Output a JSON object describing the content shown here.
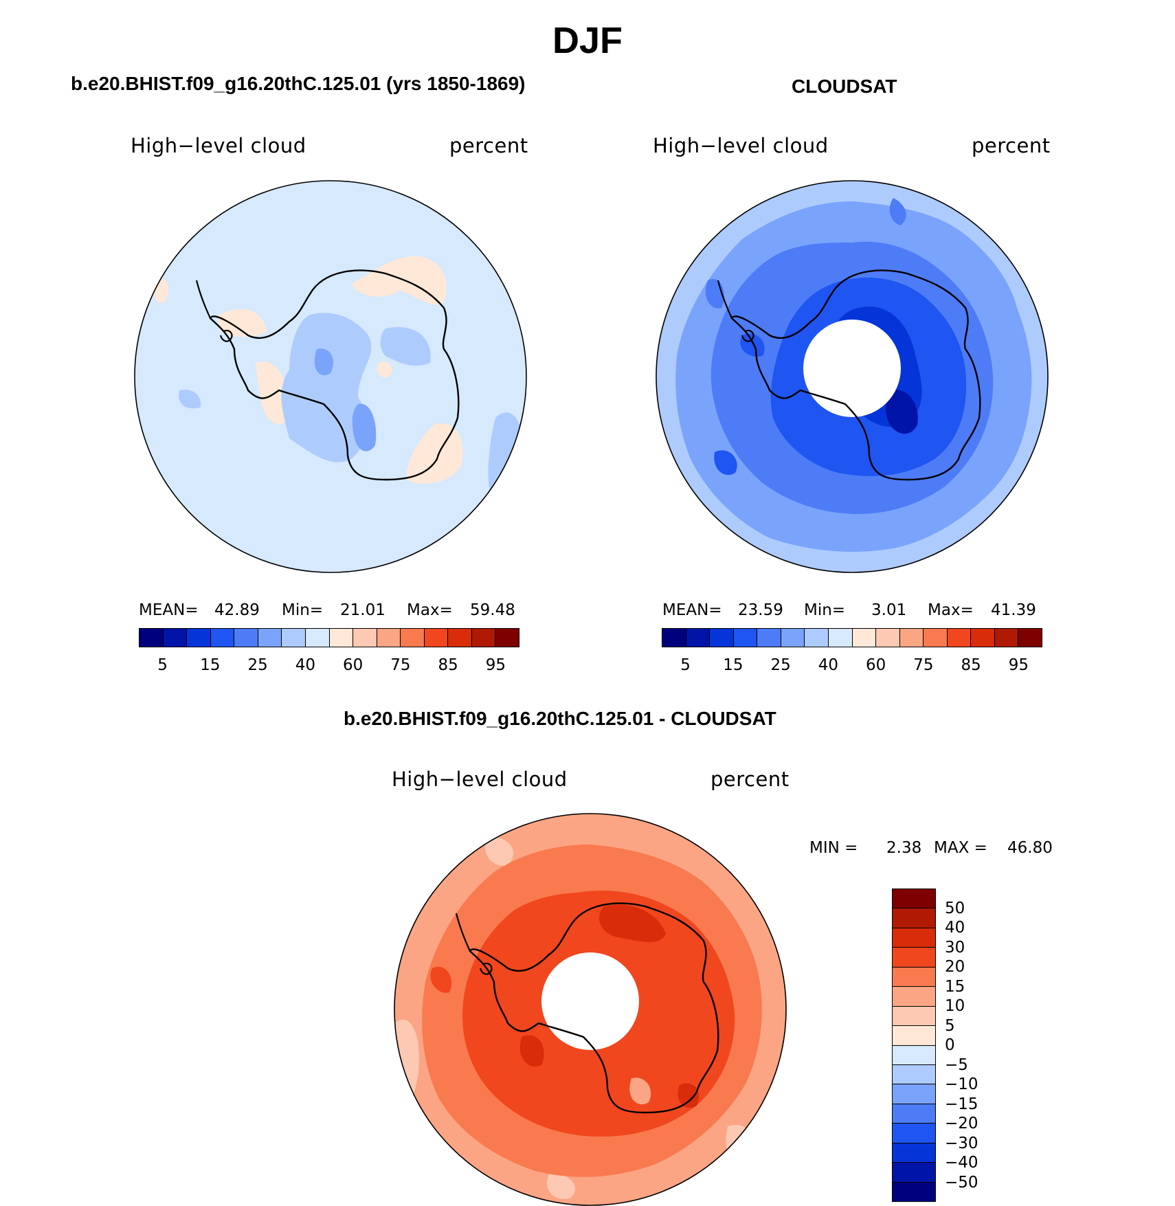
{
  "figure": {
    "title": "DJF"
  },
  "panels": [
    {
      "id": "model",
      "title": "b.e20.BHIST.f09_g16.20thC.125.01 (yrs 1850-1869)",
      "left_label": "High−level cloud",
      "right_label": "percent",
      "stats": {
        "mean_label": "MEAN=",
        "mean": "42.89",
        "min_label": "Min=",
        "min": "21.01",
        "max_label": "Max=",
        "max": "59.48"
      },
      "background_fill": "#d6e9fd",
      "has_polar_hole": false
    },
    {
      "id": "obs",
      "title": "CLOUDSAT",
      "left_label": "High−level cloud",
      "right_label": "percent",
      "stats": {
        "mean_label": "MEAN=",
        "mean": "23.59",
        "min_label": "Min=",
        "min": "3.01",
        "max_label": "Max=",
        "max": "41.39"
      },
      "background_fill": "#7aa3fc",
      "has_polar_hole": true
    },
    {
      "id": "diff",
      "title": "b.e20.BHIST.f09_g16.20thC.125.01 - CLOUDSAT",
      "left_label": "High−level cloud",
      "right_label": "percent",
      "stats": {
        "min_label": "MIN =",
        "min": "2.38",
        "max_label": "MAX =",
        "max": "46.80"
      },
      "background_fill": "#f98a5c",
      "has_polar_hole": true
    }
  ],
  "colorbar_abs": {
    "labels": [
      "5",
      "15",
      "25",
      "40",
      "60",
      "75",
      "85",
      "95"
    ],
    "colors": [
      "#00007f",
      "#0014a8",
      "#0535d8",
      "#1f55f0",
      "#4d7cf6",
      "#7aa3fc",
      "#aecbfd",
      "#d6e9fd",
      "#ffe8d8",
      "#fdc9b2",
      "#fca584",
      "#f97a4f",
      "#f0471e",
      "#d92c0a",
      "#b01a05",
      "#7f0000"
    ]
  },
  "colorbar_diff": {
    "labels": [
      "50",
      "40",
      "30",
      "20",
      "15",
      "10",
      "5",
      "0",
      "−5",
      "−10",
      "−15",
      "−20",
      "−30",
      "−40",
      "−50"
    ],
    "colors": [
      "#7f0000",
      "#b01a05",
      "#d92c0a",
      "#f0471e",
      "#f97a4f",
      "#fca584",
      "#fdc9b2",
      "#ffe8d8",
      "#d6e9fd",
      "#aecbfd",
      "#7aa3fc",
      "#4d7cf6",
      "#1f55f0",
      "#0535d8",
      "#0014a8",
      "#00007f"
    ]
  }
}
